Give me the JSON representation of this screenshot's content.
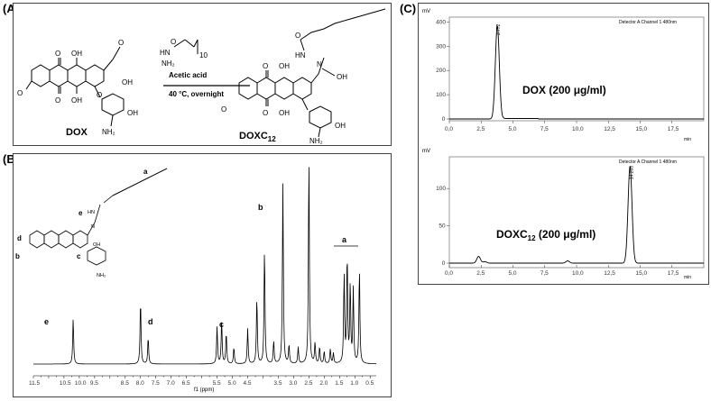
{
  "labels": {
    "a": "(A)",
    "b": "(B)",
    "c": "(C)"
  },
  "scheme": {
    "reactant_name": "DOX",
    "product_name_base": "DOXC",
    "product_name_sub": "12",
    "reagent_sub": "10",
    "reagent_atoms": [
      "O",
      "HN",
      "NH₂"
    ],
    "conditions": [
      "Acetic acid",
      "40 °C, overnight"
    ],
    "atoms": {
      "O": "O",
      "OH": "OH",
      "NH2": "NH₂",
      "N": "N",
      "HN": "HN"
    }
  },
  "nmr": {
    "xlabel": "f1 (ppm)",
    "ticks": [
      "11.5",
      "10.5",
      "10.0",
      "9.5",
      "8.5",
      "8.0",
      "7.5",
      "7.0",
      "6.5",
      "5.5",
      "5.0",
      "4.5",
      "3.5",
      "3.0",
      "2.5",
      "2.0",
      "1.5",
      "1.0",
      "0.5"
    ],
    "peak_labels": [
      "a",
      "b",
      "c",
      "d",
      "e"
    ],
    "struct_labels": [
      "a",
      "b",
      "c",
      "d",
      "e"
    ],
    "peaks_ppm": [
      {
        "ppm": 10.2,
        "h": 0.22
      },
      {
        "ppm": 8.0,
        "h": 0.31
      },
      {
        "ppm": 7.75,
        "h": 0.13
      },
      {
        "ppm": 5.5,
        "h": 0.18
      },
      {
        "ppm": 5.35,
        "h": 0.21
      },
      {
        "ppm": 5.2,
        "h": 0.15
      },
      {
        "ppm": 4.95,
        "h": 0.08
      },
      {
        "ppm": 4.5,
        "h": 0.17
      },
      {
        "ppm": 4.2,
        "h": 0.32
      },
      {
        "ppm": 3.95,
        "h": 0.56
      },
      {
        "ppm": 3.65,
        "h": 0.11
      },
      {
        "ppm": 3.35,
        "h": 0.87
      },
      {
        "ppm": 3.15,
        "h": 0.09
      },
      {
        "ppm": 2.85,
        "h": 0.08
      },
      {
        "ppm": 2.5,
        "h": 1.0
      },
      {
        "ppm": 2.3,
        "h": 0.1
      },
      {
        "ppm": 2.15,
        "h": 0.08
      },
      {
        "ppm": 2.0,
        "h": 0.06
      },
      {
        "ppm": 1.8,
        "h": 0.07
      },
      {
        "ppm": 1.7,
        "h": 0.05
      },
      {
        "ppm": 1.35,
        "h": 0.43
      },
      {
        "ppm": 1.25,
        "h": 0.52
      },
      {
        "ppm": 1.15,
        "h": 0.38
      },
      {
        "ppm": 1.05,
        "h": 0.36
      },
      {
        "ppm": 0.85,
        "h": 0.46
      }
    ]
  },
  "chrom_top": {
    "ylabel": "mV",
    "xlabel": "min",
    "detector": "Detector A Channel 1 480nm",
    "annotation": "DOX (200 μg/ml)",
    "peak_label": "3.772",
    "yticks": [
      "0",
      "100",
      "200",
      "300",
      "400"
    ],
    "xticks": [
      "0,0",
      "2,5",
      "5,0",
      "7,5",
      "10,0",
      "12,5",
      "15,0",
      "17,5"
    ]
  },
  "chrom_bottom": {
    "ylabel": "mV",
    "xlabel": "min",
    "detector": "Detector A Channel 1 480nm",
    "annotation_base": "DOXC",
    "annotation_sub": "12",
    "annotation_rest": " (200 μg/ml)",
    "peak_label": "14.203",
    "yticks": [
      "0",
      "50",
      "100"
    ],
    "xticks": [
      "0,0",
      "2,5",
      "5,0",
      "7,5",
      "10,0",
      "12,5",
      "15,0",
      "17,5"
    ]
  },
  "chart_data": [
    {
      "type": "line",
      "title": "",
      "xlabel": "f1 (ppm)",
      "ylabel": "",
      "xlim": [
        11.5,
        0.3
      ],
      "peaks": [
        {
          "ppm": 10.2,
          "rel": 0.22
        },
        {
          "ppm": 8.0,
          "rel": 0.31
        },
        {
          "ppm": 7.75,
          "rel": 0.13
        },
        {
          "ppm": 5.5,
          "rel": 0.18
        },
        {
          "ppm": 5.35,
          "rel": 0.21
        },
        {
          "ppm": 5.2,
          "rel": 0.15
        },
        {
          "ppm": 4.5,
          "rel": 0.17
        },
        {
          "ppm": 4.2,
          "rel": 0.32
        },
        {
          "ppm": 3.95,
          "rel": 0.56
        },
        {
          "ppm": 3.35,
          "rel": 0.87
        },
        {
          "ppm": 2.5,
          "rel": 1.0
        },
        {
          "ppm": 1.25,
          "rel": 0.52
        },
        {
          "ppm": 0.85,
          "rel": 0.46
        }
      ]
    },
    {
      "type": "line",
      "title": "",
      "xlabel": "min",
      "ylabel": "mV",
      "xlim": [
        0,
        20
      ],
      "ylim": [
        0,
        420
      ],
      "series": [
        {
          "name": "DOX (200 μg/ml)",
          "peak_time": 3.772,
          "peak_height": 385
        }
      ]
    },
    {
      "type": "line",
      "title": "",
      "xlabel": "min",
      "ylabel": "mV",
      "xlim": [
        0,
        20
      ],
      "ylim": [
        0,
        140
      ],
      "series": [
        {
          "name": "DOXC12 (200 μg/ml)",
          "peak_time": 14.203,
          "peak_height": 130,
          "minor": [
            {
              "t": 2.3,
              "h": 9
            },
            {
              "t": 9.3,
              "h": 3
            }
          ]
        }
      ]
    }
  ]
}
